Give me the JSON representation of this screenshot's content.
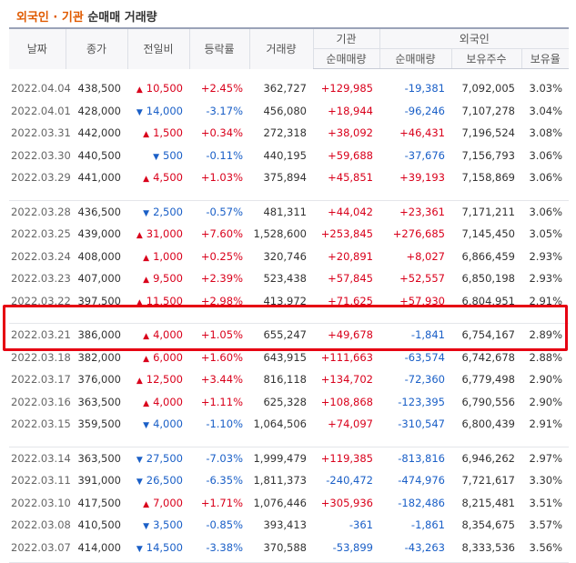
{
  "title": {
    "part1": "외국인 · 기관",
    "part2": " 순매매 거래량"
  },
  "headers": {
    "date": "날짜",
    "close": "종가",
    "change": "전일비",
    "rate": "등락률",
    "volume": "거래량",
    "inst_group": "기관",
    "inst_net": "순매매량",
    "foreign_group": "외국인",
    "foreign_net": "순매매량",
    "holdings": "보유주수",
    "holding_rate": "보유율"
  },
  "colors": {
    "up": "#d9001b",
    "down": "#1a5fc7",
    "highlight": "#e60012"
  },
  "groups": [
    {
      "rows": [
        {
          "date": "2022.04.04",
          "close": "438,500",
          "dir": "up",
          "change": "10,500",
          "rate": "+2.45%",
          "volume": "362,727",
          "inst": "+129,985",
          "foreign": "-19,381",
          "holdings": "7,092,005",
          "holding_rate": "3.03%"
        },
        {
          "date": "2022.04.01",
          "close": "428,000",
          "dir": "down",
          "change": "14,000",
          "rate": "-3.17%",
          "volume": "456,080",
          "inst": "+18,944",
          "foreign": "-96,246",
          "holdings": "7,107,278",
          "holding_rate": "3.04%"
        },
        {
          "date": "2022.03.31",
          "close": "442,000",
          "dir": "up",
          "change": "1,500",
          "rate": "+0.34%",
          "volume": "272,318",
          "inst": "+38,092",
          "foreign": "+46,431",
          "holdings": "7,196,524",
          "holding_rate": "3.08%"
        },
        {
          "date": "2022.03.30",
          "close": "440,500",
          "dir": "down",
          "change": "500",
          "rate": "-0.11%",
          "volume": "440,195",
          "inst": "+59,688",
          "foreign": "-37,676",
          "holdings": "7,156,793",
          "holding_rate": "3.06%"
        },
        {
          "date": "2022.03.29",
          "close": "441,000",
          "dir": "up",
          "change": "4,500",
          "rate": "+1.03%",
          "volume": "375,894",
          "inst": "+45,851",
          "foreign": "+39,193",
          "holdings": "7,158,869",
          "holding_rate": "3.06%"
        }
      ]
    },
    {
      "rows": [
        {
          "date": "2022.03.28",
          "close": "436,500",
          "dir": "down",
          "change": "2,500",
          "rate": "-0.57%",
          "volume": "481,311",
          "inst": "+44,042",
          "foreign": "+23,361",
          "holdings": "7,171,211",
          "holding_rate": "3.06%"
        },
        {
          "date": "2022.03.25",
          "close": "439,000",
          "dir": "up",
          "change": "31,000",
          "rate": "+7.60%",
          "volume": "1,528,600",
          "inst": "+253,845",
          "foreign": "+276,685",
          "holdings": "7,145,450",
          "holding_rate": "3.05%"
        },
        {
          "date": "2022.03.24",
          "close": "408,000",
          "dir": "up",
          "change": "1,000",
          "rate": "+0.25%",
          "volume": "320,746",
          "inst": "+20,891",
          "foreign": "+8,027",
          "holdings": "6,866,459",
          "holding_rate": "2.93%"
        },
        {
          "date": "2022.03.23",
          "close": "407,000",
          "dir": "up",
          "change": "9,500",
          "rate": "+2.39%",
          "volume": "523,438",
          "inst": "+57,845",
          "foreign": "+52,557",
          "holdings": "6,850,198",
          "holding_rate": "2.93%"
        },
        {
          "date": "2022.03.22",
          "close": "397,500",
          "dir": "up",
          "change": "11,500",
          "rate": "+2.98%",
          "volume": "413,972",
          "inst": "+71,625",
          "foreign": "+57,930",
          "holdings": "6,804,951",
          "holding_rate": "2.91%"
        }
      ]
    },
    {
      "rows": [
        {
          "date": "2022.03.21",
          "close": "386,000",
          "dir": "up",
          "change": "4,000",
          "rate": "+1.05%",
          "volume": "655,247",
          "inst": "+49,678",
          "foreign": "-1,841",
          "holdings": "6,754,167",
          "holding_rate": "2.89%"
        },
        {
          "date": "2022.03.18",
          "close": "382,000",
          "dir": "up",
          "change": "6,000",
          "rate": "+1.60%",
          "volume": "643,915",
          "inst": "+111,663",
          "foreign": "-63,574",
          "holdings": "6,742,678",
          "holding_rate": "2.88%"
        },
        {
          "date": "2022.03.17",
          "close": "376,000",
          "dir": "up",
          "change": "12,500",
          "rate": "+3.44%",
          "volume": "816,118",
          "inst": "+134,702",
          "foreign": "-72,360",
          "holdings": "6,779,498",
          "holding_rate": "2.90%"
        },
        {
          "date": "2022.03.16",
          "close": "363,500",
          "dir": "up",
          "change": "4,000",
          "rate": "+1.11%",
          "volume": "625,328",
          "inst": "+108,868",
          "foreign": "-123,395",
          "holdings": "6,790,556",
          "holding_rate": "2.90%"
        },
        {
          "date": "2022.03.15",
          "close": "359,500",
          "dir": "down",
          "change": "4,000",
          "rate": "-1.10%",
          "volume": "1,064,506",
          "inst": "+74,097",
          "foreign": "-310,547",
          "holdings": "6,800,439",
          "holding_rate": "2.91%"
        }
      ]
    },
    {
      "rows": [
        {
          "date": "2022.03.14",
          "close": "363,500",
          "dir": "down",
          "change": "27,500",
          "rate": "-7.03%",
          "volume": "1,999,479",
          "inst": "+119,385",
          "foreign": "-813,816",
          "holdings": "6,946,262",
          "holding_rate": "2.97%"
        },
        {
          "date": "2022.03.11",
          "close": "391,000",
          "dir": "down",
          "change": "26,500",
          "rate": "-6.35%",
          "volume": "1,811,373",
          "inst": "-240,472",
          "foreign": "-474,976",
          "holdings": "7,721,617",
          "holding_rate": "3.30%"
        },
        {
          "date": "2022.03.10",
          "close": "417,500",
          "dir": "up",
          "change": "7,000",
          "rate": "+1.71%",
          "volume": "1,076,446",
          "inst": "+305,936",
          "foreign": "-182,486",
          "holdings": "8,215,481",
          "holding_rate": "3.51%"
        },
        {
          "date": "2022.03.08",
          "close": "410,500",
          "dir": "down",
          "change": "3,500",
          "rate": "-0.85%",
          "volume": "393,413",
          "inst": "-361",
          "foreign": "-1,861",
          "holdings": "8,354,675",
          "holding_rate": "3.57%"
        },
        {
          "date": "2022.03.07",
          "close": "414,000",
          "dir": "down",
          "change": "14,500",
          "rate": "-3.38%",
          "volume": "370,588",
          "inst": "-53,899",
          "foreign": "-43,263",
          "holdings": "8,333,536",
          "holding_rate": "3.56%"
        }
      ]
    }
  ]
}
